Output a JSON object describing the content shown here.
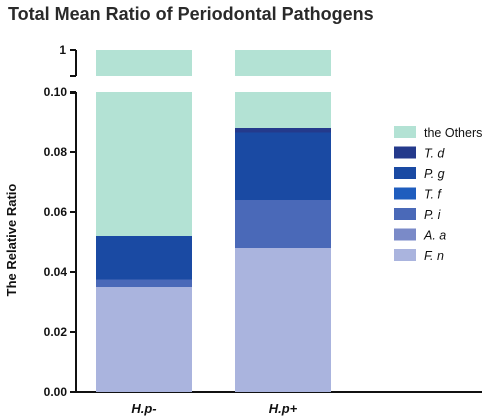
{
  "chart_data": {
    "type": "bar",
    "stacked": true,
    "title": "Total Mean Ratio of Periodontal Pathogens",
    "ylabel": "The Relative Ratio",
    "xlabel": "",
    "categories": [
      "H.p-",
      "H.p+"
    ],
    "ylim": [
      0,
      0.1
    ],
    "y_break": {
      "upper_tick": "1"
    },
    "yticks": [
      "0.00",
      "0.02",
      "0.04",
      "0.06",
      "0.08",
      "0.10"
    ],
    "series": [
      {
        "name": "F. n",
        "color": "#aab4de",
        "values": [
          0.035,
          0.048
        ],
        "italic": true
      },
      {
        "name": "A. a",
        "color": "#7a8ac8",
        "values": [
          0.0,
          0.0
        ],
        "italic": true
      },
      {
        "name": "P. i",
        "color": "#4a69b8",
        "values": [
          0.0025,
          0.016
        ],
        "italic": true
      },
      {
        "name": "T. f",
        "color": "#1f5dbe",
        "values": [
          0.0,
          0.0
        ],
        "italic": true
      },
      {
        "name": "P. g",
        "color": "#1a4aa3",
        "values": [
          0.0145,
          0.0225
        ],
        "italic": true
      },
      {
        "name": "T. d",
        "color": "#243a8c",
        "values": [
          0.0,
          0.0015
        ],
        "italic": true
      },
      {
        "name": "the Others",
        "color": "#b3e2d4",
        "values": [
          0.948,
          0.912
        ],
        "italic": false
      }
    ],
    "legend_order": [
      "the Others",
      "T. d",
      "P. g",
      "T. f",
      "P. i",
      "A. a",
      "F. n"
    ],
    "legend_position": "right",
    "grid": false
  }
}
